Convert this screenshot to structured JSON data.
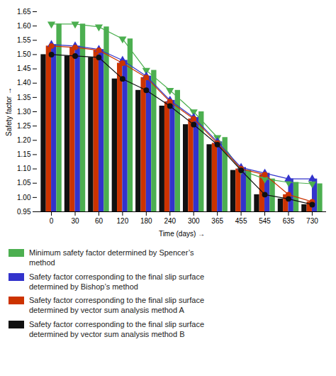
{
  "chart_data": {
    "type": "bar",
    "xlabel": "Time (days)",
    "ylabel": "Safety factor",
    "categories": [
      "0",
      "30",
      "60",
      "120",
      "180",
      "240",
      "300",
      "365",
      "455",
      "545",
      "635",
      "730"
    ],
    "series": [
      {
        "name": "Minimum safety factor determined by Spencer’s\nmethod",
        "color": "#4caf50",
        "marker": "triangle-down",
        "values": [
          1.607,
          1.607,
          1.597,
          1.555,
          1.445,
          1.375,
          1.3,
          1.21,
          1.095,
          1.065,
          1.053,
          1.048
        ]
      },
      {
        "name": "Safety factor corresponding to the final slip surface\ndetermined by Bishop’s method",
        "color": "#3333cc",
        "marker": "triangle",
        "values": [
          1.535,
          1.53,
          1.518,
          1.48,
          1.425,
          1.34,
          1.28,
          1.195,
          1.105,
          1.085,
          1.065,
          1.065
        ]
      },
      {
        "name": "Safety factor corresponding to the final slip surface\ndetermined by vector sum analysis method A",
        "color": "#cc3300",
        "marker": "circle",
        "values": [
          1.53,
          1.525,
          1.515,
          1.47,
          1.42,
          1.335,
          1.275,
          1.19,
          1.1,
          1.08,
          1.01,
          0.985
        ]
      },
      {
        "name": "Safety factor corresponding to the final slip surface\ndetermined by vector sum analysis method B",
        "color": "#111111",
        "marker": "circle",
        "values": [
          1.5,
          1.495,
          1.49,
          1.415,
          1.375,
          1.32,
          1.255,
          1.185,
          1.095,
          1.01,
          0.995,
          0.975
        ]
      }
    ],
    "ylim": [
      0.95,
      1.65
    ],
    "yticks": [
      0.95,
      {
        "value": 1.0,
        "label": "1.00"
      },
      1.05,
      {
        "value": 1.1,
        "label": "1.10"
      },
      1.15,
      {
        "value": 1.2,
        "label": "1.20"
      },
      1.25,
      {
        "value": 1.3,
        "label": "1.30"
      },
      1.35,
      {
        "value": 1.4,
        "label": "1.40"
      },
      1.45,
      {
        "value": 1.5,
        "label": "1.50"
      },
      1.55,
      {
        "value": 1.6,
        "label": "1.60"
      },
      1.65
    ],
    "legend": "bottom"
  }
}
